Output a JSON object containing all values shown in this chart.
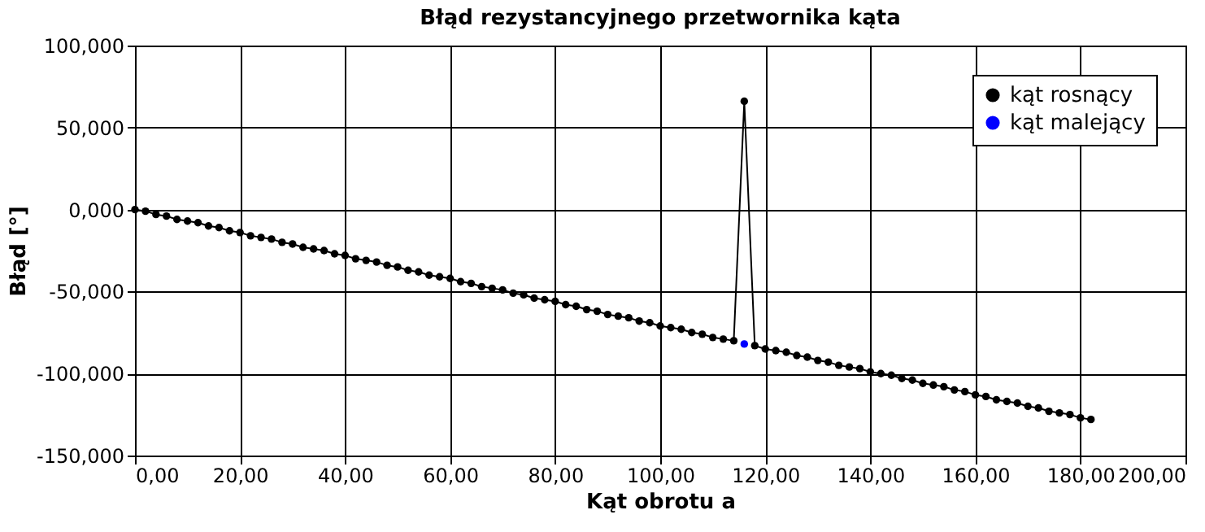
{
  "chart_data": {
    "type": "line",
    "title": "Błąd rezystancyjnego przetwornika kąta",
    "xlabel": "Kąt obrotu a",
    "ylabel": "Błąd [°]",
    "x": [
      0,
      2,
      4,
      6,
      8,
      10,
      12,
      14,
      16,
      18,
      20,
      22,
      24,
      26,
      28,
      30,
      32,
      34,
      36,
      38,
      40,
      42,
      44,
      46,
      48,
      50,
      52,
      54,
      56,
      58,
      60,
      62,
      64,
      66,
      68,
      70,
      72,
      74,
      76,
      78,
      80,
      82,
      84,
      86,
      88,
      90,
      92,
      94,
      96,
      98,
      100,
      102,
      104,
      106,
      108,
      110,
      112,
      114,
      116,
      118,
      120,
      122,
      124,
      126,
      128,
      130,
      132,
      134,
      136,
      138,
      140,
      142,
      144,
      146,
      148,
      150,
      152,
      154,
      156,
      158,
      160,
      162,
      164,
      166,
      168,
      170,
      172,
      174,
      176,
      178,
      180,
      182
    ],
    "series": [
      {
        "name": "kąt rosnący",
        "color": "#000000",
        "values": [
          0,
          -1,
          -3,
          -4,
          -6,
          -7,
          -8,
          -10,
          -11,
          -13,
          -14,
          -16,
          -17,
          -18,
          -20,
          -21,
          -23,
          -24,
          -25,
          -27,
          -28,
          -30,
          -31,
          -32,
          -34,
          -35,
          -37,
          -38,
          -40,
          -41,
          -42,
          -44,
          -45,
          -47,
          -48,
          -49,
          -51,
          -52,
          -54,
          -55,
          -56,
          -58,
          -59,
          -61,
          -62,
          -64,
          -65,
          -66,
          -68,
          -69,
          -71,
          -72,
          -73,
          -75,
          -76,
          -78,
          -79,
          -80,
          66,
          -83,
          -85,
          -86,
          -87,
          -89,
          -90,
          -92,
          -93,
          -95,
          -96,
          -97,
          -99,
          -100,
          -101,
          -103,
          -104,
          -106,
          -107,
          -108,
          -110,
          -111,
          -113,
          -114,
          -116,
          -117,
          -118,
          -120,
          -121,
          -123,
          -124,
          -125,
          -127,
          -128
        ]
      },
      {
        "name": "kąt malejący",
        "color": "#0000ff",
        "values": [
          null,
          null,
          null,
          null,
          null,
          null,
          null,
          null,
          null,
          null,
          null,
          null,
          null,
          null,
          null,
          null,
          null,
          null,
          null,
          null,
          null,
          null,
          null,
          null,
          null,
          null,
          null,
          null,
          null,
          null,
          null,
          null,
          null,
          null,
          null,
          null,
          null,
          null,
          null,
          null,
          null,
          null,
          null,
          null,
          null,
          null,
          null,
          null,
          null,
          null,
          null,
          null,
          null,
          null,
          null,
          null,
          null,
          null,
          -82,
          null,
          null,
          null,
          null,
          null,
          null,
          null,
          null,
          null,
          null,
          null,
          null,
          null,
          null,
          null,
          null,
          null,
          null,
          null,
          null,
          null,
          null,
          null,
          null,
          null,
          null,
          null,
          null,
          null,
          null,
          null,
          null,
          null
        ]
      }
    ],
    "xlim": [
      0,
      200
    ],
    "xticks": [
      {
        "value": 0,
        "label": "0,00"
      },
      {
        "value": 20,
        "label": "20,00"
      },
      {
        "value": 40,
        "label": "40,00"
      },
      {
        "value": 60,
        "label": "60,00"
      },
      {
        "value": 80,
        "label": "80,00"
      },
      {
        "value": 100,
        "label": "100,00"
      },
      {
        "value": 120,
        "label": "120,00"
      },
      {
        "value": 140,
        "label": "140,00"
      },
      {
        "value": 160,
        "label": "160,00"
      },
      {
        "value": 180,
        "label": "180,00"
      },
      {
        "value": 200,
        "label": "200,00"
      }
    ],
    "ylim": [
      -150,
      100
    ],
    "yticks": [
      {
        "value": -150,
        "label": "-150,000"
      },
      {
        "value": -100,
        "label": "-100,000"
      },
      {
        "value": -50,
        "label": "-50,000"
      },
      {
        "value": 0,
        "label": "0,000"
      },
      {
        "value": 50,
        "label": "50,000"
      },
      {
        "value": 100,
        "label": "100,000"
      }
    ],
    "grid": true,
    "legend": "top right",
    "marker": "circle",
    "line_style": "solid"
  }
}
